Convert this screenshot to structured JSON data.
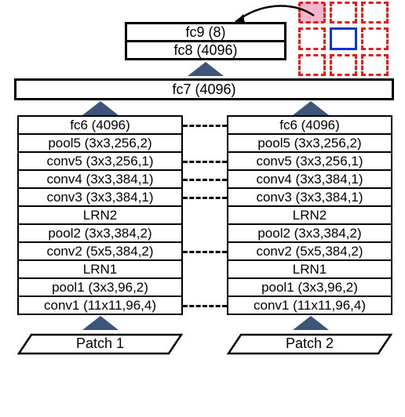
{
  "top": {
    "fc9": "fc9 (8)",
    "fc8": "fc8 (4096)",
    "fc7": "fc7 (4096)"
  },
  "layers": [
    "fc6 (4096)",
    "pool5 (3x3,256,2)",
    "conv5 (3x3,256,1)",
    "conv4 (3x3,384,1)",
    "conv3 (3x3,384,1)",
    "LRN2",
    "pool2 (3x3,384,2)",
    "conv2 (5x5,384,2)",
    "LRN1",
    "pool1 (3x3,96,2)",
    "conv1 (11x11,96,4)"
  ],
  "patches": {
    "left": "Patch 1",
    "right": "Patch 2"
  },
  "dashed_rows": [
    0,
    2,
    3,
    4,
    7,
    10
  ],
  "style": {
    "arrow_fill": "#3c5578",
    "grid_red": "#e61c1c",
    "grid_blue": "#1431d4",
    "grid_highlight_bg": "#f7b4cb"
  },
  "caption_left": "",
  "caption_right": ""
}
